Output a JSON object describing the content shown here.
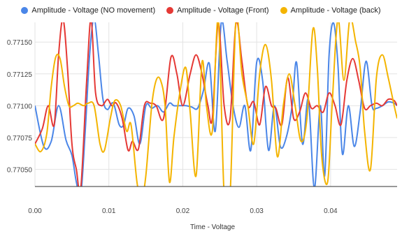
{
  "chart_data": {
    "type": "line",
    "title": "",
    "xlabel": "Time - Voltage",
    "ylabel": "",
    "legend_position": "top",
    "grid": true,
    "xlim": [
      0,
      0.049
    ],
    "ylim": [
      0.770365,
      0.771655
    ],
    "x_ticks": [
      0,
      0.01,
      0.02,
      0.03,
      0.04
    ],
    "x_tick_labels": [
      "0.00",
      "0.01",
      "0.02",
      "0.03",
      "0.04"
    ],
    "y_ticks": [
      0.7705,
      0.77075,
      0.771,
      0.77125,
      0.7715
    ],
    "y_tick_labels": [
      "0.77050",
      "0.77075",
      "0.77100",
      "0.77125",
      "0.77150"
    ],
    "series": [
      {
        "name": "Amplitude - Voltage (NO movement)",
        "color": "#4a86e8",
        "points": [
          [
            0,
            0.771
          ],
          [
            0.0012,
            0.77068
          ],
          [
            0.0022,
            0.77072
          ],
          [
            0.0032,
            0.771
          ],
          [
            0.0042,
            0.77073
          ],
          [
            0.005,
            0.77061
          ],
          [
            0.0056,
            0.7704
          ],
          [
            0.0062,
            0.7703
          ],
          [
            0.0068,
            0.7708
          ],
          [
            0.0074,
            0.7714
          ],
          [
            0.008,
            0.77168
          ],
          [
            0.0086,
            0.7714
          ],
          [
            0.0092,
            0.77105
          ],
          [
            0.0098,
            0.77097
          ],
          [
            0.0106,
            0.77102
          ],
          [
            0.0114,
            0.77085
          ],
          [
            0.012,
            0.77085
          ],
          [
            0.0126,
            0.77098
          ],
          [
            0.0134,
            0.77092
          ],
          [
            0.0142,
            0.7707
          ],
          [
            0.015,
            0.771
          ],
          [
            0.0158,
            0.77098
          ],
          [
            0.0166,
            0.771
          ],
          [
            0.0174,
            0.77095
          ],
          [
            0.0182,
            0.77102
          ],
          [
            0.0188,
            0.771
          ],
          [
            0.0196,
            0.771
          ],
          [
            0.0204,
            0.771
          ],
          [
            0.0212,
            0.77099
          ],
          [
            0.022,
            0.77098
          ],
          [
            0.0228,
            0.77112
          ],
          [
            0.0236,
            0.77133
          ],
          [
            0.0244,
            0.7708
          ],
          [
            0.0252,
            0.77165
          ],
          [
            0.026,
            0.77135
          ],
          [
            0.0268,
            0.771
          ],
          [
            0.0276,
            0.77083
          ],
          [
            0.0284,
            0.771
          ],
          [
            0.0292,
            0.77065
          ],
          [
            0.03,
            0.77134
          ],
          [
            0.0308,
            0.7712
          ],
          [
            0.0316,
            0.77065
          ],
          [
            0.0324,
            0.771
          ],
          [
            0.0332,
            0.77068
          ],
          [
            0.034,
            0.77075
          ],
          [
            0.0348,
            0.771
          ],
          [
            0.0354,
            0.77134
          ],
          [
            0.0362,
            0.7707
          ],
          [
            0.037,
            0.77105
          ],
          [
            0.0378,
            0.77035
          ],
          [
            0.0386,
            0.771
          ],
          [
            0.0392,
            0.77045
          ],
          [
            0.0398,
            0.7714
          ],
          [
            0.0404,
            0.77165
          ],
          [
            0.041,
            0.77132
          ],
          [
            0.0416,
            0.77062
          ],
          [
            0.0424,
            0.771
          ],
          [
            0.0432,
            0.77068
          ],
          [
            0.044,
            0.77095
          ],
          [
            0.0448,
            0.77135
          ],
          [
            0.0456,
            0.771
          ],
          [
            0.0462,
            0.77098
          ],
          [
            0.047,
            0.771
          ],
          [
            0.0478,
            0.77103
          ],
          [
            0.0486,
            0.77102
          ],
          [
            0.049,
            0.771
          ]
        ]
      },
      {
        "name": "Amplitude - Voltage (Front)",
        "color": "#e53935",
        "points": [
          [
            0,
            0.7707
          ],
          [
            0.001,
            0.77082
          ],
          [
            0.0018,
            0.771
          ],
          [
            0.0026,
            0.77085
          ],
          [
            0.0032,
            0.7714
          ],
          [
            0.0038,
            0.77168
          ],
          [
            0.0044,
            0.7713
          ],
          [
            0.005,
            0.7707
          ],
          [
            0.0056,
            0.7705
          ],
          [
            0.0062,
            0.77035
          ],
          [
            0.007,
            0.7712
          ],
          [
            0.0076,
            0.77168
          ],
          [
            0.0082,
            0.7711
          ],
          [
            0.009,
            0.771
          ],
          [
            0.0098,
            0.77105
          ],
          [
            0.0104,
            0.771
          ],
          [
            0.011,
            0.77102
          ],
          [
            0.0118,
            0.7709
          ],
          [
            0.0126,
            0.77065
          ],
          [
            0.0132,
            0.77072
          ],
          [
            0.014,
            0.77066
          ],
          [
            0.0148,
            0.771
          ],
          [
            0.0156,
            0.77102
          ],
          [
            0.0164,
            0.771
          ],
          [
            0.0174,
            0.7709
          ],
          [
            0.0184,
            0.77138
          ],
          [
            0.0192,
            0.77125
          ],
          [
            0.02,
            0.771
          ],
          [
            0.021,
            0.77125
          ],
          [
            0.0218,
            0.7714
          ],
          [
            0.0226,
            0.77125
          ],
          [
            0.0234,
            0.771
          ],
          [
            0.024,
            0.7709
          ],
          [
            0.0248,
            0.77165
          ],
          [
            0.0256,
            0.771
          ],
          [
            0.0264,
            0.7709
          ],
          [
            0.0272,
            0.77165
          ],
          [
            0.028,
            0.77135
          ],
          [
            0.0288,
            0.771
          ],
          [
            0.0296,
            0.77103
          ],
          [
            0.0304,
            0.77085
          ],
          [
            0.0312,
            0.77115
          ],
          [
            0.032,
            0.771
          ],
          [
            0.0326,
            0.77098
          ],
          [
            0.0334,
            0.77085
          ],
          [
            0.0342,
            0.77122
          ],
          [
            0.035,
            0.7709
          ],
          [
            0.0358,
            0.77095
          ],
          [
            0.0366,
            0.7711
          ],
          [
            0.0374,
            0.77098
          ],
          [
            0.0382,
            0.771
          ],
          [
            0.039,
            0.77095
          ],
          [
            0.0398,
            0.7711
          ],
          [
            0.0406,
            0.771
          ],
          [
            0.0414,
            0.77085
          ],
          [
            0.0422,
            0.7712
          ],
          [
            0.043,
            0.77137
          ],
          [
            0.0438,
            0.7712
          ],
          [
            0.0446,
            0.77098
          ],
          [
            0.0454,
            0.771
          ],
          [
            0.0462,
            0.77102
          ],
          [
            0.047,
            0.771
          ],
          [
            0.0478,
            0.77105
          ],
          [
            0.0486,
            0.77104
          ],
          [
            0.049,
            0.771
          ]
        ]
      },
      {
        "name": "Amplitude - Voltage (back)",
        "color": "#f4b400",
        "points": [
          [
            0,
            0.7707
          ],
          [
            0.0008,
            0.77064
          ],
          [
            0.0016,
            0.77078
          ],
          [
            0.0022,
            0.77115
          ],
          [
            0.0028,
            0.77138
          ],
          [
            0.0034,
            0.77137
          ],
          [
            0.004,
            0.77115
          ],
          [
            0.0046,
            0.771
          ],
          [
            0.0052,
            0.771
          ],
          [
            0.0058,
            0.77102
          ],
          [
            0.0066,
            0.771
          ],
          [
            0.0072,
            0.77102
          ],
          [
            0.008,
            0.771
          ],
          [
            0.0088,
            0.7707
          ],
          [
            0.0094,
            0.77065
          ],
          [
            0.0102,
            0.7709
          ],
          [
            0.0108,
            0.77104
          ],
          [
            0.0116,
            0.771
          ],
          [
            0.0124,
            0.7708
          ],
          [
            0.013,
            0.77085
          ],
          [
            0.0138,
            0.7704
          ],
          [
            0.0144,
            0.77026
          ],
          [
            0.015,
            0.77045
          ],
          [
            0.0158,
            0.771
          ],
          [
            0.0164,
            0.7712
          ],
          [
            0.017,
            0.7712
          ],
          [
            0.0176,
            0.771
          ],
          [
            0.0182,
            0.7704
          ],
          [
            0.0188,
            0.77075
          ],
          [
            0.0196,
            0.7711
          ],
          [
            0.0204,
            0.7713
          ],
          [
            0.021,
            0.77095
          ],
          [
            0.0218,
            0.77045
          ],
          [
            0.0226,
            0.77134
          ],
          [
            0.0232,
            0.771
          ],
          [
            0.024,
            0.7708
          ],
          [
            0.0248,
            0.77168
          ],
          [
            0.0256,
            0.7703
          ],
          [
            0.0264,
            0.7703
          ],
          [
            0.0272,
            0.77168
          ],
          [
            0.028,
            0.77125
          ],
          [
            0.0288,
            0.771
          ],
          [
            0.0296,
            0.7707
          ],
          [
            0.0304,
            0.77125
          ],
          [
            0.0312,
            0.77148
          ],
          [
            0.032,
            0.7712
          ],
          [
            0.0328,
            0.7706
          ],
          [
            0.0336,
            0.771
          ],
          [
            0.0344,
            0.77125
          ],
          [
            0.0352,
            0.771
          ],
          [
            0.036,
            0.77072
          ],
          [
            0.0368,
            0.7709
          ],
          [
            0.0376,
            0.7716
          ],
          [
            0.0382,
            0.7713
          ],
          [
            0.0388,
            0.7706
          ],
          [
            0.0396,
            0.7704
          ],
          [
            0.0402,
            0.771
          ],
          [
            0.041,
            0.77168
          ],
          [
            0.0418,
            0.7712
          ],
          [
            0.0426,
            0.77168
          ],
          [
            0.0434,
            0.7715
          ],
          [
            0.044,
            0.7713
          ],
          [
            0.0446,
            0.7708
          ],
          [
            0.0454,
            0.7705
          ],
          [
            0.0462,
            0.77122
          ],
          [
            0.047,
            0.7714
          ],
          [
            0.0478,
            0.77122
          ],
          [
            0.0486,
            0.771
          ],
          [
            0.049,
            0.7709
          ]
        ]
      }
    ]
  }
}
